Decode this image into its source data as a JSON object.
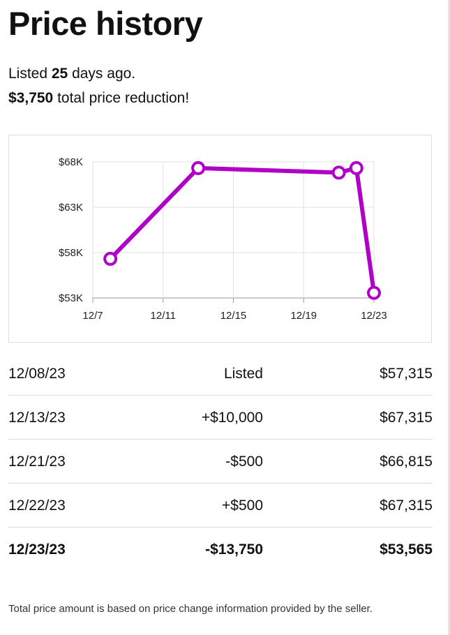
{
  "page": {
    "title": "Price history",
    "summary": {
      "listed_prefix": "Listed ",
      "listed_days": "25",
      "listed_suffix": " days ago.",
      "reduction_amount": "$3,750",
      "reduction_suffix": " total price reduction!"
    },
    "footnote": "Total price amount is based on price change information provided by the seller."
  },
  "history": {
    "rows": [
      {
        "date": "12/08/23",
        "change": "Listed",
        "price": "$57,315"
      },
      {
        "date": "12/13/23",
        "change": "+$10,000",
        "price": "$67,315"
      },
      {
        "date": "12/21/23",
        "change": "-$500",
        "price": "$66,815"
      },
      {
        "date": "12/22/23",
        "change": "+$500",
        "price": "$67,315"
      },
      {
        "date": "12/23/23",
        "change": "-$13,750",
        "price": "$53,565"
      }
    ]
  },
  "chart_data": {
    "type": "line",
    "title": "",
    "xlabel": "",
    "ylabel": "",
    "x_ticks": [
      "12/7",
      "12/11",
      "12/15",
      "12/19",
      "12/23"
    ],
    "y_ticks": [
      "$53K",
      "$58K",
      "$63K",
      "$68K"
    ],
    "ylim": [
      53000,
      68000
    ],
    "grid": true,
    "color": "#b000c8",
    "series": [
      {
        "points": [
          {
            "date": "12/8",
            "value": 57315
          },
          {
            "date": "12/13",
            "value": 67315
          },
          {
            "date": "12/21",
            "value": 66815
          },
          {
            "date": "12/22",
            "value": 67315
          },
          {
            "date": "12/23",
            "value": 53565
          }
        ]
      }
    ]
  }
}
